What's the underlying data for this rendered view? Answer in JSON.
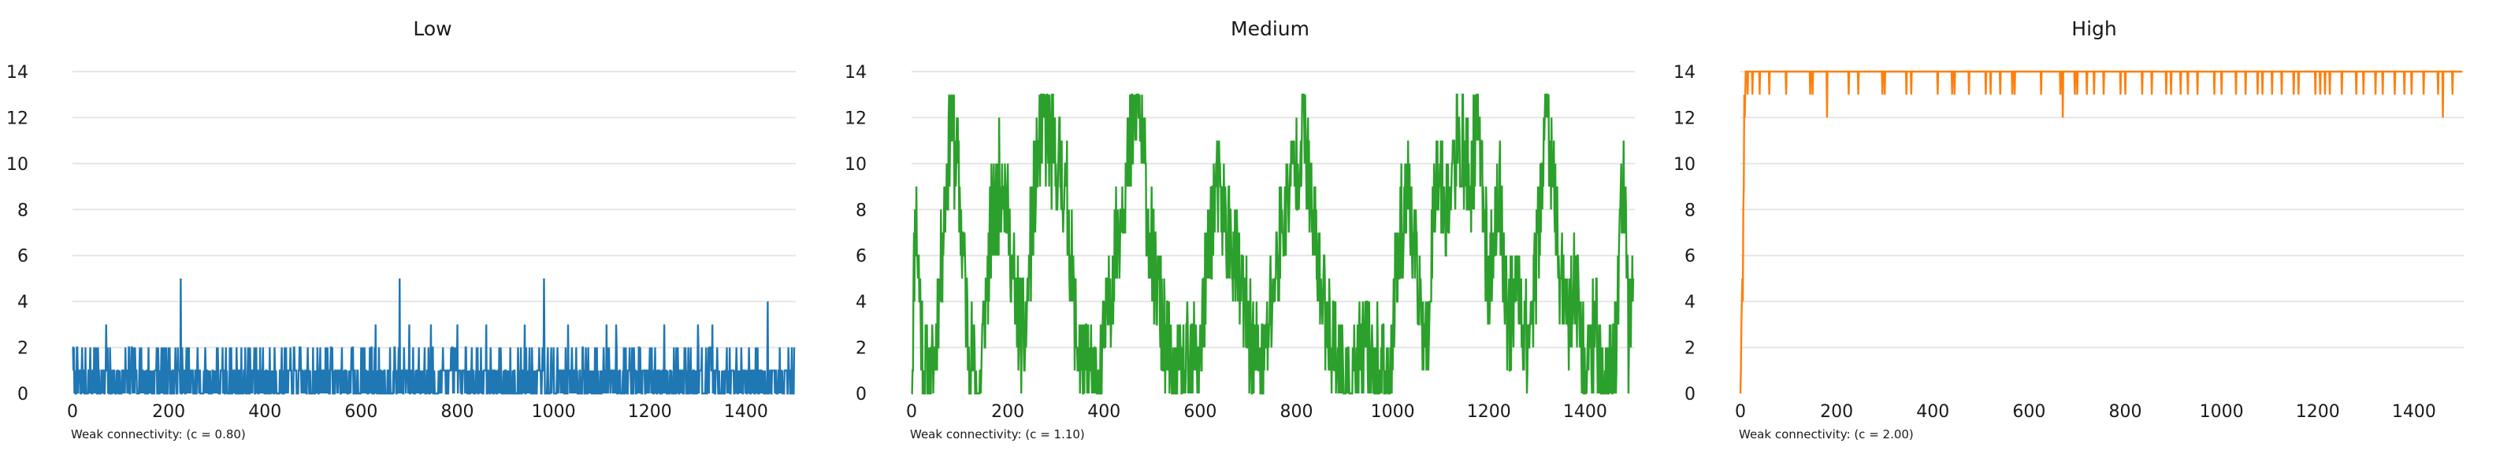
{
  "chart_data": [
    {
      "type": "line",
      "title": "Low",
      "color": "#1f77b4",
      "annotation": "Weak connectivity: (c = 0.80)",
      "xlim": [
        0,
        1500
      ],
      "ylim": [
        0,
        14
      ],
      "x_ticks": [
        0,
        200,
        400,
        600,
        800,
        1000,
        1200,
        1400
      ],
      "y_ticks": [
        0,
        2,
        4,
        6,
        8,
        10,
        12,
        14
      ],
      "grid": "horizontal",
      "peaks": [
        [
          0,
          2
        ],
        [
          20,
          2
        ],
        [
          45,
          2
        ],
        [
          70,
          3
        ],
        [
          110,
          2
        ],
        [
          140,
          2
        ],
        [
          175,
          2
        ],
        [
          200,
          2
        ],
        [
          225,
          5
        ],
        [
          260,
          2
        ],
        [
          300,
          2
        ],
        [
          330,
          2
        ],
        [
          365,
          2
        ],
        [
          390,
          2
        ],
        [
          420,
          2
        ],
        [
          460,
          2
        ],
        [
          500,
          2
        ],
        [
          530,
          2
        ],
        [
          560,
          2
        ],
        [
          600,
          2
        ],
        [
          630,
          3
        ],
        [
          660,
          2
        ],
        [
          680,
          5
        ],
        [
          700,
          3
        ],
        [
          720,
          2
        ],
        [
          745,
          3
        ],
        [
          770,
          2
        ],
        [
          800,
          3
        ],
        [
          830,
          2
        ],
        [
          860,
          3
        ],
        [
          890,
          2
        ],
        [
          910,
          2
        ],
        [
          940,
          3
        ],
        [
          970,
          2
        ],
        [
          980,
          5
        ],
        [
          1000,
          2
        ],
        [
          1030,
          3
        ],
        [
          1060,
          2
        ],
        [
          1090,
          2
        ],
        [
          1110,
          3
        ],
        [
          1130,
          3
        ],
        [
          1150,
          2
        ],
        [
          1180,
          2
        ],
        [
          1200,
          2
        ],
        [
          1230,
          3
        ],
        [
          1250,
          2
        ],
        [
          1280,
          2
        ],
        [
          1300,
          3
        ],
        [
          1330,
          3
        ],
        [
          1360,
          2
        ],
        [
          1390,
          2
        ],
        [
          1420,
          2
        ],
        [
          1445,
          4
        ],
        [
          1470,
          2
        ],
        [
          1495,
          2
        ]
      ]
    },
    {
      "type": "line",
      "title": "Medium",
      "color": "#2ca02c",
      "annotation": "Weak connectivity: (c = 1.10)",
      "xlim": [
        0,
        1500
      ],
      "ylim": [
        0,
        14
      ],
      "x_ticks": [
        0,
        200,
        400,
        600,
        800,
        1000,
        1200,
        1400
      ],
      "y_ticks": [
        0,
        2,
        4,
        6,
        8,
        10,
        12,
        14
      ],
      "grid": "horizontal",
      "anchors": [
        [
          0,
          0
        ],
        [
          8,
          8
        ],
        [
          25,
          1
        ],
        [
          40,
          0
        ],
        [
          60,
          5
        ],
        [
          80,
          12
        ],
        [
          95,
          10
        ],
        [
          120,
          2
        ],
        [
          140,
          0
        ],
        [
          165,
          7
        ],
        [
          190,
          10
        ],
        [
          215,
          4
        ],
        [
          235,
          2
        ],
        [
          255,
          9
        ],
        [
          275,
          12
        ],
        [
          300,
          10
        ],
        [
          320,
          9
        ],
        [
          345,
          2
        ],
        [
          365,
          1
        ],
        [
          385,
          0
        ],
        [
          410,
          4
        ],
        [
          440,
          9
        ],
        [
          460,
          11
        ],
        [
          470,
          13
        ],
        [
          495,
          7
        ],
        [
          520,
          3
        ],
        [
          545,
          0
        ],
        [
          570,
          1
        ],
        [
          600,
          2
        ],
        [
          630,
          9
        ],
        [
          660,
          7
        ],
        [
          690,
          4
        ],
        [
          710,
          2
        ],
        [
          730,
          1
        ],
        [
          760,
          6
        ],
        [
          785,
          9
        ],
        [
          800,
          10
        ],
        [
          815,
          12
        ],
        [
          830,
          8
        ],
        [
          855,
          4
        ],
        [
          880,
          2
        ],
        [
          910,
          0
        ],
        [
          940,
          2
        ],
        [
          970,
          1
        ],
        [
          990,
          0
        ],
        [
          1010,
          6
        ],
        [
          1030,
          9
        ],
        [
          1050,
          5
        ],
        [
          1070,
          2
        ],
        [
          1090,
          10
        ],
        [
          1110,
          8
        ],
        [
          1140,
          11
        ],
        [
          1160,
          9
        ],
        [
          1180,
          12
        ],
        [
          1200,
          4
        ],
        [
          1220,
          9
        ],
        [
          1240,
          3
        ],
        [
          1260,
          5
        ],
        [
          1280,
          2
        ],
        [
          1300,
          6
        ],
        [
          1320,
          13
        ],
        [
          1340,
          7
        ],
        [
          1360,
          3
        ],
        [
          1380,
          5
        ],
        [
          1400,
          1
        ],
        [
          1420,
          3
        ],
        [
          1440,
          0
        ],
        [
          1460,
          1
        ],
        [
          1480,
          10
        ],
        [
          1490,
          2
        ],
        [
          1500,
          6
        ]
      ]
    },
    {
      "type": "line",
      "title": "High",
      "color": "#ff7f0e",
      "annotation": "Weak connectivity: (c = 2.00)",
      "xlim": [
        0,
        1500
      ],
      "ylim": [
        0,
        14
      ],
      "x_ticks": [
        0,
        200,
        400,
        600,
        800,
        1000,
        1200,
        1400
      ],
      "y_ticks": [
        0,
        2,
        4,
        6,
        8,
        10,
        12,
        14
      ],
      "grid": "horizontal",
      "start": [
        [
          0,
          0
        ],
        [
          5,
          4
        ],
        [
          8,
          13
        ],
        [
          12,
          14
        ]
      ],
      "plateau": 14,
      "dips": [
        [
          15,
          13
        ],
        [
          25,
          13
        ],
        [
          40,
          13
        ],
        [
          60,
          13
        ],
        [
          95,
          13
        ],
        [
          145,
          13
        ],
        [
          150,
          13
        ],
        [
          180,
          12
        ],
        [
          225,
          13
        ],
        [
          245,
          13
        ],
        [
          295,
          13
        ],
        [
          300,
          13
        ],
        [
          345,
          13
        ],
        [
          355,
          13
        ],
        [
          410,
          13
        ],
        [
          440,
          13
        ],
        [
          445,
          13
        ],
        [
          475,
          13
        ],
        [
          510,
          13
        ],
        [
          520,
          13
        ],
        [
          540,
          13
        ],
        [
          565,
          13
        ],
        [
          570,
          13
        ],
        [
          625,
          13
        ],
        [
          665,
          13
        ],
        [
          670,
          12
        ],
        [
          695,
          13
        ],
        [
          700,
          13
        ],
        [
          720,
          13
        ],
        [
          735,
          13
        ],
        [
          755,
          13
        ],
        [
          790,
          13
        ],
        [
          800,
          13
        ],
        [
          835,
          13
        ],
        [
          855,
          13
        ],
        [
          885,
          13
        ],
        [
          895,
          13
        ],
        [
          915,
          13
        ],
        [
          930,
          13
        ],
        [
          950,
          13
        ],
        [
          985,
          13
        ],
        [
          1000,
          13
        ],
        [
          1030,
          13
        ],
        [
          1050,
          13
        ],
        [
          1075,
          13
        ],
        [
          1085,
          13
        ],
        [
          1105,
          13
        ],
        [
          1125,
          13
        ],
        [
          1150,
          13
        ],
        [
          1160,
          13
        ],
        [
          1195,
          13
        ],
        [
          1205,
          13
        ],
        [
          1215,
          13
        ],
        [
          1225,
          13
        ],
        [
          1250,
          13
        ],
        [
          1280,
          13
        ],
        [
          1295,
          13
        ],
        [
          1320,
          13
        ],
        [
          1335,
          13
        ],
        [
          1360,
          13
        ],
        [
          1380,
          13
        ],
        [
          1395,
          13
        ],
        [
          1420,
          13
        ],
        [
          1450,
          13
        ],
        [
          1460,
          12
        ],
        [
          1480,
          13
        ]
      ]
    }
  ]
}
